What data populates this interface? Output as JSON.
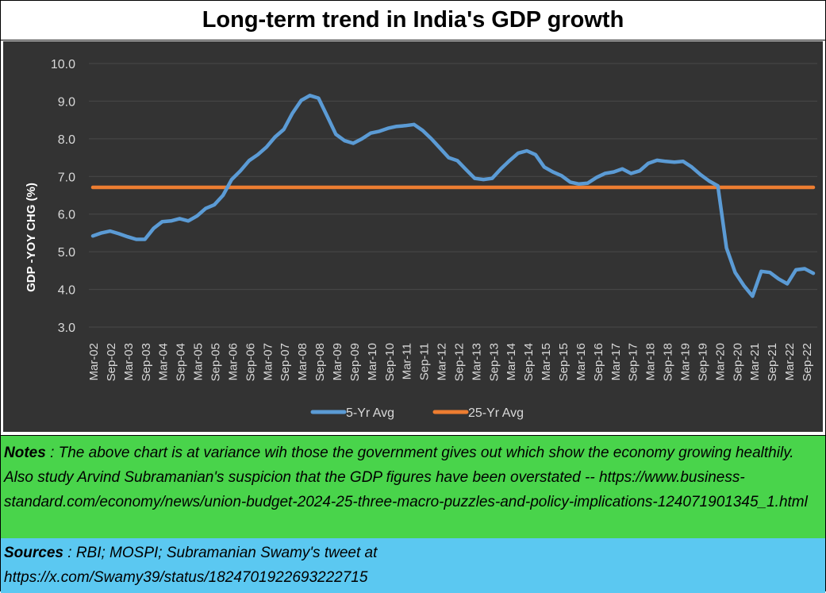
{
  "title": "Long-term trend in India's GDP growth",
  "colors": {
    "chart_bg": "#333333",
    "series_5yr": "#5b9bd5",
    "series_25yr": "#ed7d31",
    "notes_bg": "#49d44b",
    "sources_bg": "#5bc8f1"
  },
  "chart_data": {
    "type": "line",
    "ylabel": "GDP -YOY CHG (%)",
    "xlabel": "",
    "ylim": [
      3.0,
      10.0
    ],
    "yticks": [
      "10.0",
      "9.0",
      "8.0",
      "7.0",
      "6.0",
      "5.0",
      "4.0",
      "3.0"
    ],
    "grid": true,
    "legend_position": "bottom-center",
    "x_tick_labels": [
      "Mar-02",
      "Sep-02",
      "Mar-03",
      "Sep-03",
      "Mar-04",
      "Sep-04",
      "Mar-05",
      "Sep-05",
      "Mar-06",
      "Sep-06",
      "Mar-07",
      "Sep-07",
      "Mar-08",
      "Sep-08",
      "Mar-09",
      "Sep-09",
      "Mar-10",
      "Sep-10",
      "Mar-11",
      "Sep-11",
      "Mar-12",
      "Sep-12",
      "Mar-13",
      "Sep-13",
      "Mar-14",
      "Sep-14",
      "Mar-15",
      "Sep-15",
      "Mar-16",
      "Sep-16",
      "Mar-17",
      "Sep-17",
      "Mar-18",
      "Sep-18",
      "Mar-19",
      "Sep-19",
      "Mar-20",
      "Sep-20",
      "Mar-21",
      "Sep-21",
      "Mar-22",
      "Sep-22"
    ],
    "series": [
      {
        "name": "5-Yr Avg",
        "color": "#5b9bd5",
        "values": [
          5.42,
          5.5,
          5.55,
          5.48,
          5.4,
          5.33,
          5.33,
          5.62,
          5.8,
          5.82,
          5.88,
          5.82,
          5.95,
          6.15,
          6.25,
          6.5,
          6.92,
          7.15,
          7.42,
          7.58,
          7.78,
          8.05,
          8.25,
          8.68,
          9.02,
          9.15,
          9.08,
          8.6,
          8.12,
          7.95,
          7.88,
          8.0,
          8.15,
          8.2,
          8.28,
          8.33,
          8.35,
          8.38,
          8.22,
          8.0,
          7.75,
          7.5,
          7.42,
          7.18,
          6.95,
          6.92,
          6.95,
          7.2,
          7.42,
          7.62,
          7.68,
          7.58,
          7.25,
          7.12,
          7.02,
          6.85,
          6.8,
          6.82,
          6.97,
          7.08,
          7.12,
          7.2,
          7.08,
          7.15,
          7.35,
          7.43,
          7.4,
          7.38,
          7.4,
          7.25,
          7.05,
          6.88,
          6.75,
          5.1,
          4.45,
          4.1,
          3.82,
          4.48,
          4.45,
          4.28,
          4.15,
          4.52,
          4.55,
          4.43
        ]
      },
      {
        "name": "25-Yr Avg",
        "color": "#ed7d31",
        "values": [
          6.71,
          6.71,
          6.71,
          6.71,
          6.71,
          6.71,
          6.71,
          6.71,
          6.71,
          6.71,
          6.71,
          6.71,
          6.71,
          6.71,
          6.71,
          6.71,
          6.71,
          6.71,
          6.71,
          6.71,
          6.71,
          6.71,
          6.71,
          6.71,
          6.71,
          6.71,
          6.71,
          6.71,
          6.71,
          6.71,
          6.71,
          6.71,
          6.71,
          6.71,
          6.71,
          6.71,
          6.71,
          6.71,
          6.71,
          6.71,
          6.71,
          6.71,
          6.71,
          6.71,
          6.71,
          6.71,
          6.71,
          6.71,
          6.71,
          6.71,
          6.71,
          6.71,
          6.71,
          6.71,
          6.71,
          6.71,
          6.71,
          6.71,
          6.71,
          6.71,
          6.71,
          6.71,
          6.71,
          6.71,
          6.71,
          6.71,
          6.71,
          6.71,
          6.71,
          6.71,
          6.71,
          6.71,
          6.71,
          6.71,
          6.71,
          6.71,
          6.71,
          6.71,
          6.71,
          6.71,
          6.71,
          6.71,
          6.71,
          6.71
        ]
      }
    ]
  },
  "notes": {
    "label": "Notes",
    "text": " : The above chart is at variance wih those the government gives out which show the economy growing healthily.  Also study Arvind Subramanian's suspicion that the GDP figures have been overstated -- https://www.business-standard.com/economy/news/union-budget-2024-25-three-macro-puzzles-and-policy-implications-124071901345_1.html"
  },
  "sources": {
    "label": "Sources",
    "text": " : RBI; MOSPI; Subramanian Swamy's tweet at",
    "url": "https://x.com/Swamy39/status/1824701922693222715"
  }
}
